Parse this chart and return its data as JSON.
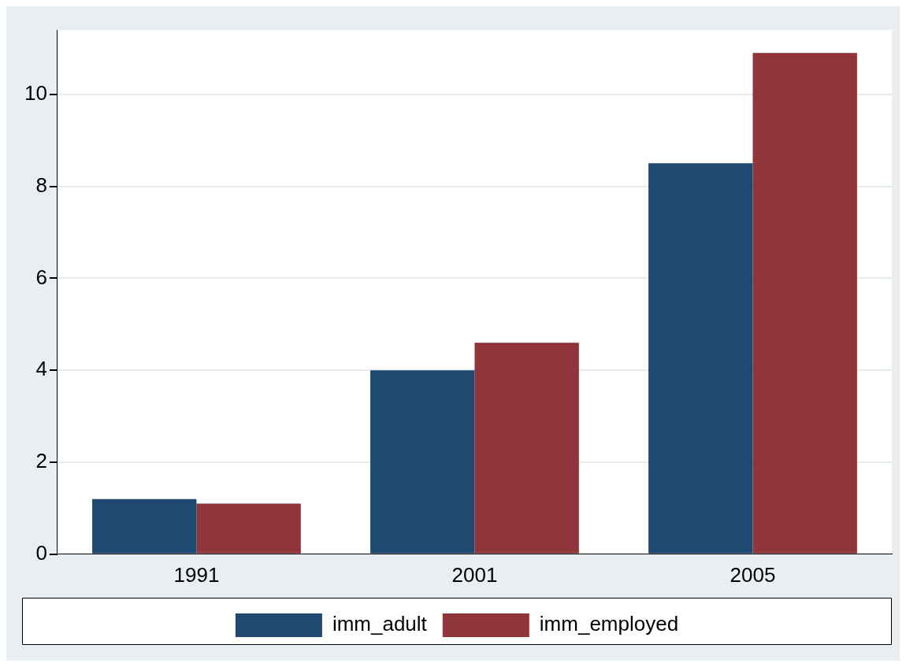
{
  "chart_data": {
    "type": "bar",
    "categories": [
      "1991",
      "2001",
      "2005"
    ],
    "series": [
      {
        "name": "imm_adult",
        "color": "#1f4970",
        "values": [
          1.2,
          4.0,
          8.5
        ]
      },
      {
        "name": "imm_employed",
        "color": "#90353b",
        "values": [
          1.1,
          4.6,
          10.9
        ]
      }
    ],
    "ylim": [
      0,
      11.4
    ],
    "yticks": [
      0,
      2,
      4,
      6,
      8,
      10
    ],
    "grid": "y",
    "legend": "bottom"
  }
}
